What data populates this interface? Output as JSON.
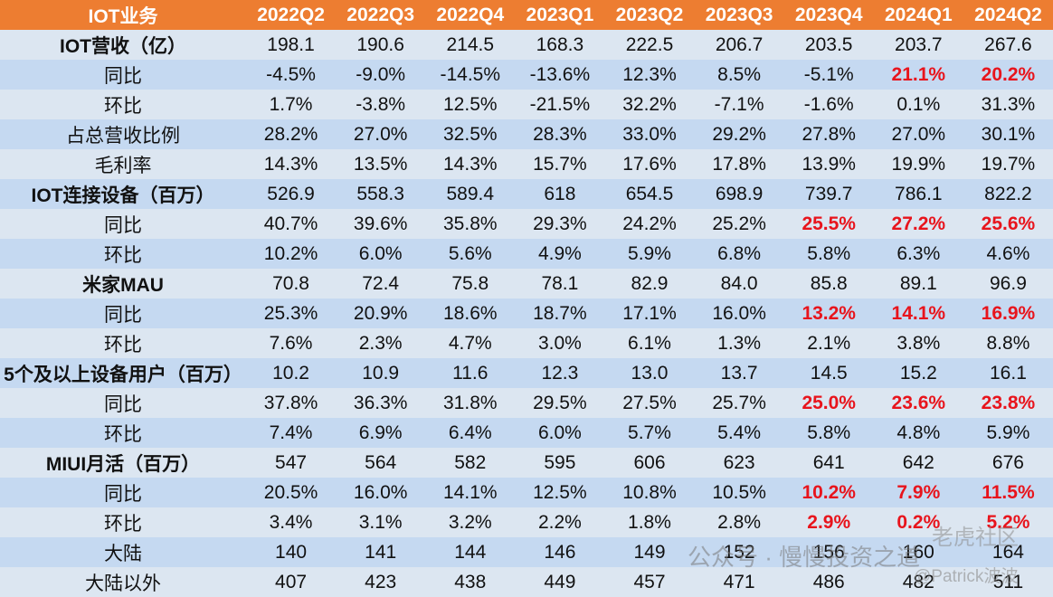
{
  "table": {
    "header": [
      "IOT业务",
      "2022Q2",
      "2022Q3",
      "2022Q4",
      "2023Q1",
      "2023Q2",
      "2023Q3",
      "2023Q4",
      "2024Q1",
      "2024Q2"
    ],
    "rows": [
      {
        "label": "IOT营收（亿）",
        "bold": true,
        "cells": [
          "198.1",
          "190.6",
          "214.5",
          "168.3",
          "222.5",
          "206.7",
          "203.5",
          "203.7",
          "267.6"
        ],
        "red": []
      },
      {
        "label": "同比",
        "bold": false,
        "cells": [
          "-4.5%",
          "-9.0%",
          "-14.5%",
          "-13.6%",
          "12.3%",
          "8.5%",
          "-5.1%",
          "21.1%",
          "20.2%"
        ],
        "red": [
          7,
          8
        ]
      },
      {
        "label": "环比",
        "bold": false,
        "cells": [
          "1.7%",
          "-3.8%",
          "12.5%",
          "-21.5%",
          "32.2%",
          "-7.1%",
          "-1.6%",
          "0.1%",
          "31.3%"
        ],
        "red": []
      },
      {
        "label": "占总营收比例",
        "bold": false,
        "cells": [
          "28.2%",
          "27.0%",
          "32.5%",
          "28.3%",
          "33.0%",
          "29.2%",
          "27.8%",
          "27.0%",
          "30.1%"
        ],
        "red": []
      },
      {
        "label": "毛利率",
        "bold": false,
        "cells": [
          "14.3%",
          "13.5%",
          "14.3%",
          "15.7%",
          "17.6%",
          "17.8%",
          "13.9%",
          "19.9%",
          "19.7%"
        ],
        "red": []
      },
      {
        "label": "IOT连接设备（百万）",
        "bold": true,
        "cells": [
          "526.9",
          "558.3",
          "589.4",
          "618",
          "654.5",
          "698.9",
          "739.7",
          "786.1",
          "822.2"
        ],
        "red": []
      },
      {
        "label": "同比",
        "bold": false,
        "cells": [
          "40.7%",
          "39.6%",
          "35.8%",
          "29.3%",
          "24.2%",
          "25.2%",
          "25.5%",
          "27.2%",
          "25.6%"
        ],
        "red": [
          6,
          7,
          8
        ]
      },
      {
        "label": "环比",
        "bold": false,
        "cells": [
          "10.2%",
          "6.0%",
          "5.6%",
          "4.9%",
          "5.9%",
          "6.8%",
          "5.8%",
          "6.3%",
          "4.6%"
        ],
        "red": []
      },
      {
        "label": "米家MAU",
        "bold": true,
        "cells": [
          "70.8",
          "72.4",
          "75.8",
          "78.1",
          "82.9",
          "84.0",
          "85.8",
          "89.1",
          "96.9"
        ],
        "red": []
      },
      {
        "label": "同比",
        "bold": false,
        "cells": [
          "25.3%",
          "20.9%",
          "18.6%",
          "18.7%",
          "17.1%",
          "16.0%",
          "13.2%",
          "14.1%",
          "16.9%"
        ],
        "red": [
          6,
          7,
          8
        ]
      },
      {
        "label": "环比",
        "bold": false,
        "cells": [
          "7.6%",
          "2.3%",
          "4.7%",
          "3.0%",
          "6.1%",
          "1.3%",
          "2.1%",
          "3.8%",
          "8.8%"
        ],
        "red": []
      },
      {
        "label": "5个及以上设备用户（百万）",
        "bold": true,
        "cells": [
          "10.2",
          "10.9",
          "11.6",
          "12.3",
          "13.0",
          "13.7",
          "14.5",
          "15.2",
          "16.1"
        ],
        "red": []
      },
      {
        "label": "同比",
        "bold": false,
        "cells": [
          "37.8%",
          "36.3%",
          "31.8%",
          "29.5%",
          "27.5%",
          "25.7%",
          "25.0%",
          "23.6%",
          "23.8%"
        ],
        "red": [
          6,
          7,
          8
        ]
      },
      {
        "label": "环比",
        "bold": false,
        "cells": [
          "7.4%",
          "6.9%",
          "6.4%",
          "6.0%",
          "5.7%",
          "5.4%",
          "5.8%",
          "4.8%",
          "5.9%"
        ],
        "red": []
      },
      {
        "label": "MIUI月活（百万）",
        "bold": true,
        "cells": [
          "547",
          "564",
          "582",
          "595",
          "606",
          "623",
          "641",
          "642",
          "676"
        ],
        "red": []
      },
      {
        "label": "同比",
        "bold": false,
        "cells": [
          "20.5%",
          "16.0%",
          "14.1%",
          "12.5%",
          "10.8%",
          "10.5%",
          "10.2%",
          "7.9%",
          "11.5%"
        ],
        "red": [
          6,
          7,
          8
        ]
      },
      {
        "label": "环比",
        "bold": false,
        "cells": [
          "3.4%",
          "3.1%",
          "3.2%",
          "2.2%",
          "1.8%",
          "2.8%",
          "2.9%",
          "0.2%",
          "5.2%"
        ],
        "red": [
          6,
          7,
          8
        ]
      },
      {
        "label": "大陆",
        "bold": false,
        "cells": [
          "140",
          "141",
          "144",
          "146",
          "149",
          "152",
          "156",
          "160",
          "164"
        ],
        "red": []
      },
      {
        "label": "大陆以外",
        "bold": false,
        "cells": [
          "407",
          "423",
          "438",
          "449",
          "457",
          "471",
          "486",
          "482",
          "511"
        ],
        "red": []
      }
    ]
  },
  "watermarks": [
    "老虎社区",
    "公众号 · 慢慢投资之道",
    "@Patrick波波"
  ]
}
